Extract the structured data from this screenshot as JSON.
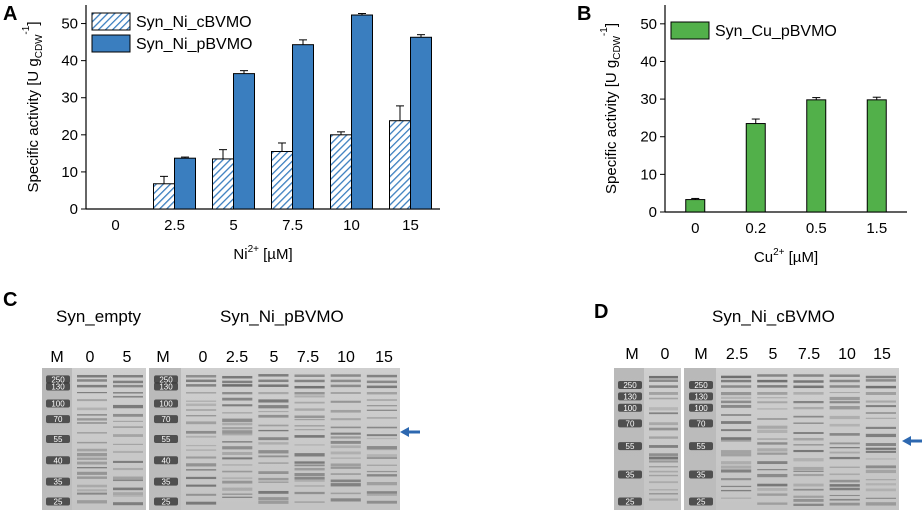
{
  "panels": {
    "a": {
      "letter": "A"
    },
    "b": {
      "letter": "B"
    },
    "c": {
      "letter": "C",
      "group1_title": "Syn_empty",
      "group2_title": "Syn_Ni_pBVMO",
      "lanes_left": [
        "M",
        "0",
        "5"
      ],
      "lanes_right": [
        "M",
        "0",
        "2.5",
        "5",
        "7.5",
        "10",
        "15"
      ],
      "ladder_left": [
        "250",
        "130",
        "100",
        "70",
        "55",
        "40",
        "35",
        "25"
      ],
      "ladder_right": [
        "250",
        "130",
        "100",
        "70",
        "55",
        "40",
        "35",
        "25"
      ]
    },
    "d": {
      "letter": "D",
      "title": "Syn_Ni_cBVMO",
      "lanes_left": [
        "M",
        "0"
      ],
      "lanes_right": [
        "M",
        "2.5",
        "5",
        "7.5",
        "10",
        "15"
      ],
      "ladder_left": [
        "250",
        "130",
        "100",
        "70",
        "55",
        "35",
        "25"
      ],
      "ladder_right": [
        "250",
        "130",
        "100",
        "70",
        "55",
        "35",
        "25"
      ]
    }
  },
  "chart_data": [
    {
      "type": "bar",
      "panel": "A",
      "categories": [
        "0",
        "2.5",
        "5",
        "7.5",
        "10",
        "15"
      ],
      "series": [
        {
          "name": "Syn_Ni_cBVMO",
          "values": [
            0,
            6.8,
            13.5,
            15.5,
            20.0,
            23.8
          ],
          "errors": [
            0,
            2.0,
            2.5,
            2.3,
            0.8,
            4.0
          ],
          "style": "hatched",
          "color": "#3a7ebf"
        },
        {
          "name": "Syn_Ni_pBVMO",
          "values": [
            0,
            13.7,
            36.5,
            44.3,
            52.3,
            46.3
          ],
          "errors": [
            0,
            0.3,
            0.8,
            1.3,
            0.4,
            0.7
          ],
          "style": "solid",
          "color": "#3a7ebf"
        }
      ],
      "xlabel": "Ni2+ [µM]",
      "ylabel": "Specific activity [U gCDW-1]",
      "ylabel_parts": {
        "main": "Specific activity [U g",
        "sub": "CDW",
        "sup": "-1",
        "end": "]"
      },
      "xlabel_parts": {
        "main": "Ni",
        "sup": "2+",
        "end": " [µM]"
      },
      "ylim": [
        0,
        55
      ],
      "yticks": [
        0,
        10,
        20,
        30,
        40,
        50
      ],
      "legend": "top-left"
    },
    {
      "type": "bar",
      "panel": "B",
      "categories": [
        "0",
        "0.2",
        "0.5",
        "1.5"
      ],
      "series": [
        {
          "name": "Syn_Cu_pBVMO",
          "values": [
            3.3,
            23.5,
            29.8,
            29.8
          ],
          "errors": [
            0.3,
            1.2,
            0.6,
            0.7
          ],
          "style": "solid",
          "color": "#52b04a"
        }
      ],
      "xlabel": "Cu2+ [µM]",
      "ylabel": "Specific activity [U gCDW-1]",
      "ylabel_parts": {
        "main": "Specific activity [U g",
        "sub": "CDW",
        "sup": "-1",
        "end": "]"
      },
      "xlabel_parts": {
        "main": "Cu",
        "sup": "2+",
        "end": " [µM]"
      },
      "ylim": [
        0,
        55
      ],
      "yticks": [
        0,
        10,
        20,
        30,
        40,
        50
      ],
      "legend": "top-left"
    }
  ]
}
